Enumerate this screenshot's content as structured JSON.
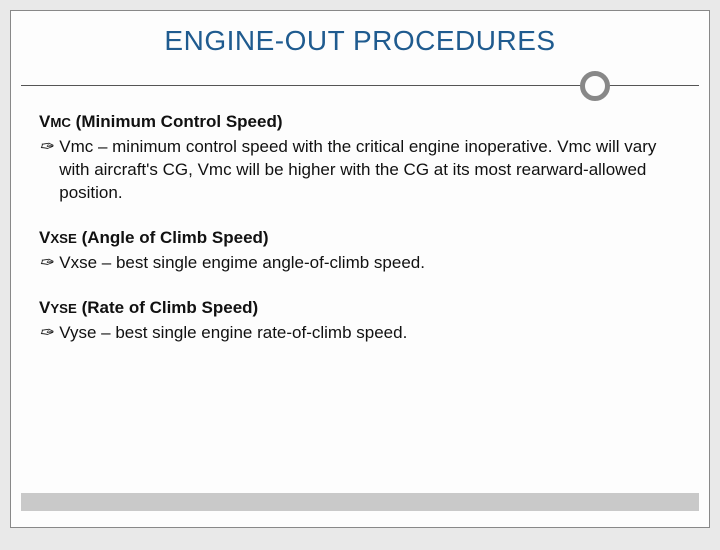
{
  "colors": {
    "page_bg": "#e9e9e9",
    "slide_bg": "#fdfdfd",
    "slide_border": "#888888",
    "title_color": "#1f5b8f",
    "divider_line": "#555555",
    "divider_circle_border": "#888888",
    "body_text": "#111111",
    "footer_bar": "#c9c9c9"
  },
  "title": "ENGINE-OUT PROCEDURES",
  "sections": [
    {
      "heading_prefix": "V",
      "heading_sub": "MC",
      "heading_rest": " (Minimum Control Speed)",
      "bullet": "Vmc – minimum control speed with the critical engine inoperative.  Vmc will vary with aircraft's CG, Vmc will be higher with the CG at its most rearward-allowed position."
    },
    {
      "heading_prefix": "V",
      "heading_sub": "XSE",
      "heading_rest": " (Angle of Climb Speed)",
      "bullet": "Vxse – best single engime angle-of-climb speed."
    },
    {
      "heading_prefix": "V",
      "heading_sub": "YSE",
      "heading_rest": " (Rate of Climb Speed)",
      "bullet": "Vyse – best single engine rate-of-climb speed."
    }
  ],
  "bullet_glyph": "✑"
}
